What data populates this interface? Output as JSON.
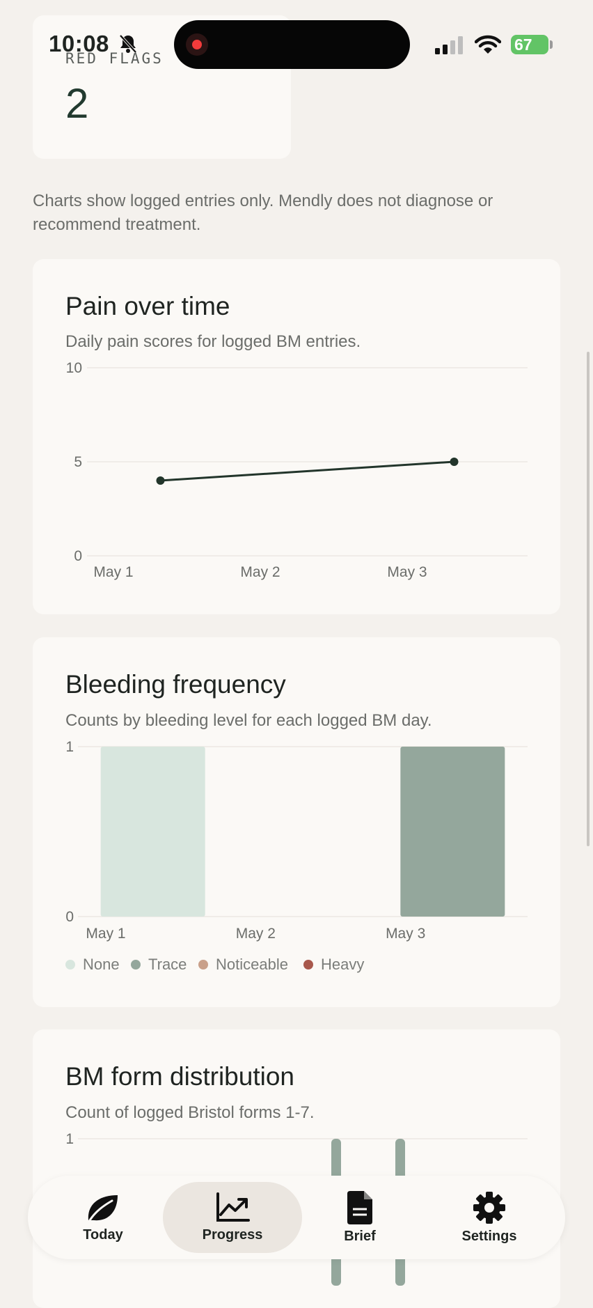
{
  "status_bar": {
    "time": "10:08",
    "battery": "67"
  },
  "red_flags_card": {
    "label": "RED FLAGS",
    "value": "2"
  },
  "disclaimer": "Charts show logged entries only. Mendly does not diagnose or recommend treatment.",
  "pain_card": {
    "title": "Pain over time",
    "subtitle": "Daily pain scores for logged BM entries."
  },
  "bleeding_card": {
    "title": "Bleeding frequency",
    "subtitle": "Counts by bleeding level for each logged BM day.",
    "legend": [
      {
        "label": "None",
        "color": "#d8e6de"
      },
      {
        "label": "Trace",
        "color": "#94a79c"
      },
      {
        "label": "Noticeable",
        "color": "#c9a08a"
      },
      {
        "label": "Heavy",
        "color": "#a8584c"
      }
    ]
  },
  "form_card": {
    "title": "BM form distribution",
    "subtitle": "Count of logged Bristol forms 1-7."
  },
  "chart_data": [
    {
      "type": "line",
      "categories": [
        "May 1",
        "May 2",
        "May 3"
      ],
      "y_ticks": [
        "10",
        "5",
        "0"
      ],
      "ylim": [
        0,
        10
      ],
      "series": [
        {
          "values": [
            4,
            null,
            5
          ],
          "color": "#22352b"
        }
      ]
    },
    {
      "type": "bar",
      "categories": [
        "May 1",
        "May 2",
        "May 3"
      ],
      "y_ticks": [
        "1",
        "0"
      ],
      "ylim": [
        0,
        1
      ],
      "series": [
        {
          "name": "None",
          "values": [
            1,
            0,
            0
          ],
          "color": "#d8e6de"
        },
        {
          "name": "Trace",
          "values": [
            0,
            0,
            1
          ],
          "color": "#94a79c"
        },
        {
          "name": "Noticeable",
          "values": [
            0,
            0,
            0
          ],
          "color": "#c9a08a"
        },
        {
          "name": "Heavy",
          "values": [
            0,
            0,
            0
          ],
          "color": "#a8584c"
        }
      ]
    },
    {
      "type": "bar",
      "y_ticks": [
        "1"
      ],
      "ylim": [
        0,
        1
      ],
      "note": "partially visible; two bars reach 1"
    }
  ],
  "tabbar": {
    "tabs": [
      {
        "label": "Today",
        "icon": "leaf-icon"
      },
      {
        "label": "Progress",
        "icon": "chart-trend-icon",
        "active": true
      },
      {
        "label": "Brief",
        "icon": "document-icon"
      },
      {
        "label": "Settings",
        "icon": "gear-icon"
      }
    ]
  }
}
